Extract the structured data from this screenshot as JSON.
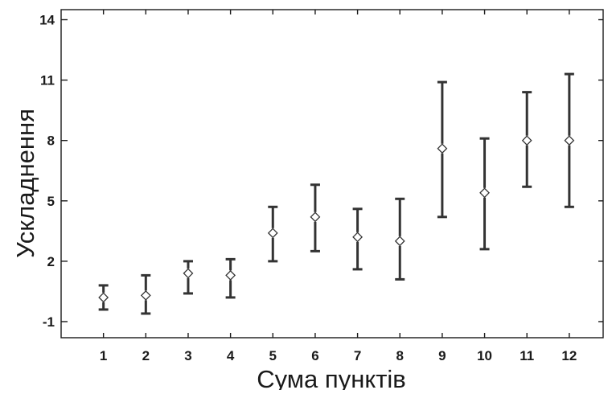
{
  "chart_data": {
    "type": "scatter",
    "subtype": "point-with-error-bars",
    "xlabel": "Сума пунктів",
    "ylabel": "Ускладнення",
    "xlim": [
      0,
      12.8
    ],
    "ylim": [
      -1.8,
      14.5
    ],
    "x_ticks": [
      1,
      2,
      3,
      4,
      5,
      6,
      7,
      8,
      9,
      10,
      11,
      12
    ],
    "y_ticks": [
      -1,
      2,
      5,
      8,
      11,
      14
    ],
    "grid": false,
    "legend": "none",
    "marker": "diamond-open",
    "color": "#333333",
    "points": [
      {
        "x": 1,
        "y": 0.2,
        "low": -0.4,
        "high": 0.8
      },
      {
        "x": 2,
        "y": 0.3,
        "low": -0.6,
        "high": 1.3
      },
      {
        "x": 3,
        "y": 1.4,
        "low": 0.4,
        "high": 2.0
      },
      {
        "x": 4,
        "y": 1.3,
        "low": 0.2,
        "high": 2.1
      },
      {
        "x": 5,
        "y": 3.4,
        "low": 2.0,
        "high": 4.7
      },
      {
        "x": 6,
        "y": 4.2,
        "low": 2.5,
        "high": 5.8
      },
      {
        "x": 7,
        "y": 3.2,
        "low": 1.6,
        "high": 4.6
      },
      {
        "x": 8,
        "y": 3.0,
        "low": 1.1,
        "high": 5.1
      },
      {
        "x": 9,
        "y": 7.6,
        "low": 4.2,
        "high": 10.9
      },
      {
        "x": 10,
        "y": 5.4,
        "low": 2.6,
        "high": 8.1
      },
      {
        "x": 11,
        "y": 8.0,
        "low": 5.7,
        "high": 10.4
      },
      {
        "x": 12,
        "y": 8.0,
        "low": 4.7,
        "high": 11.3
      }
    ]
  }
}
